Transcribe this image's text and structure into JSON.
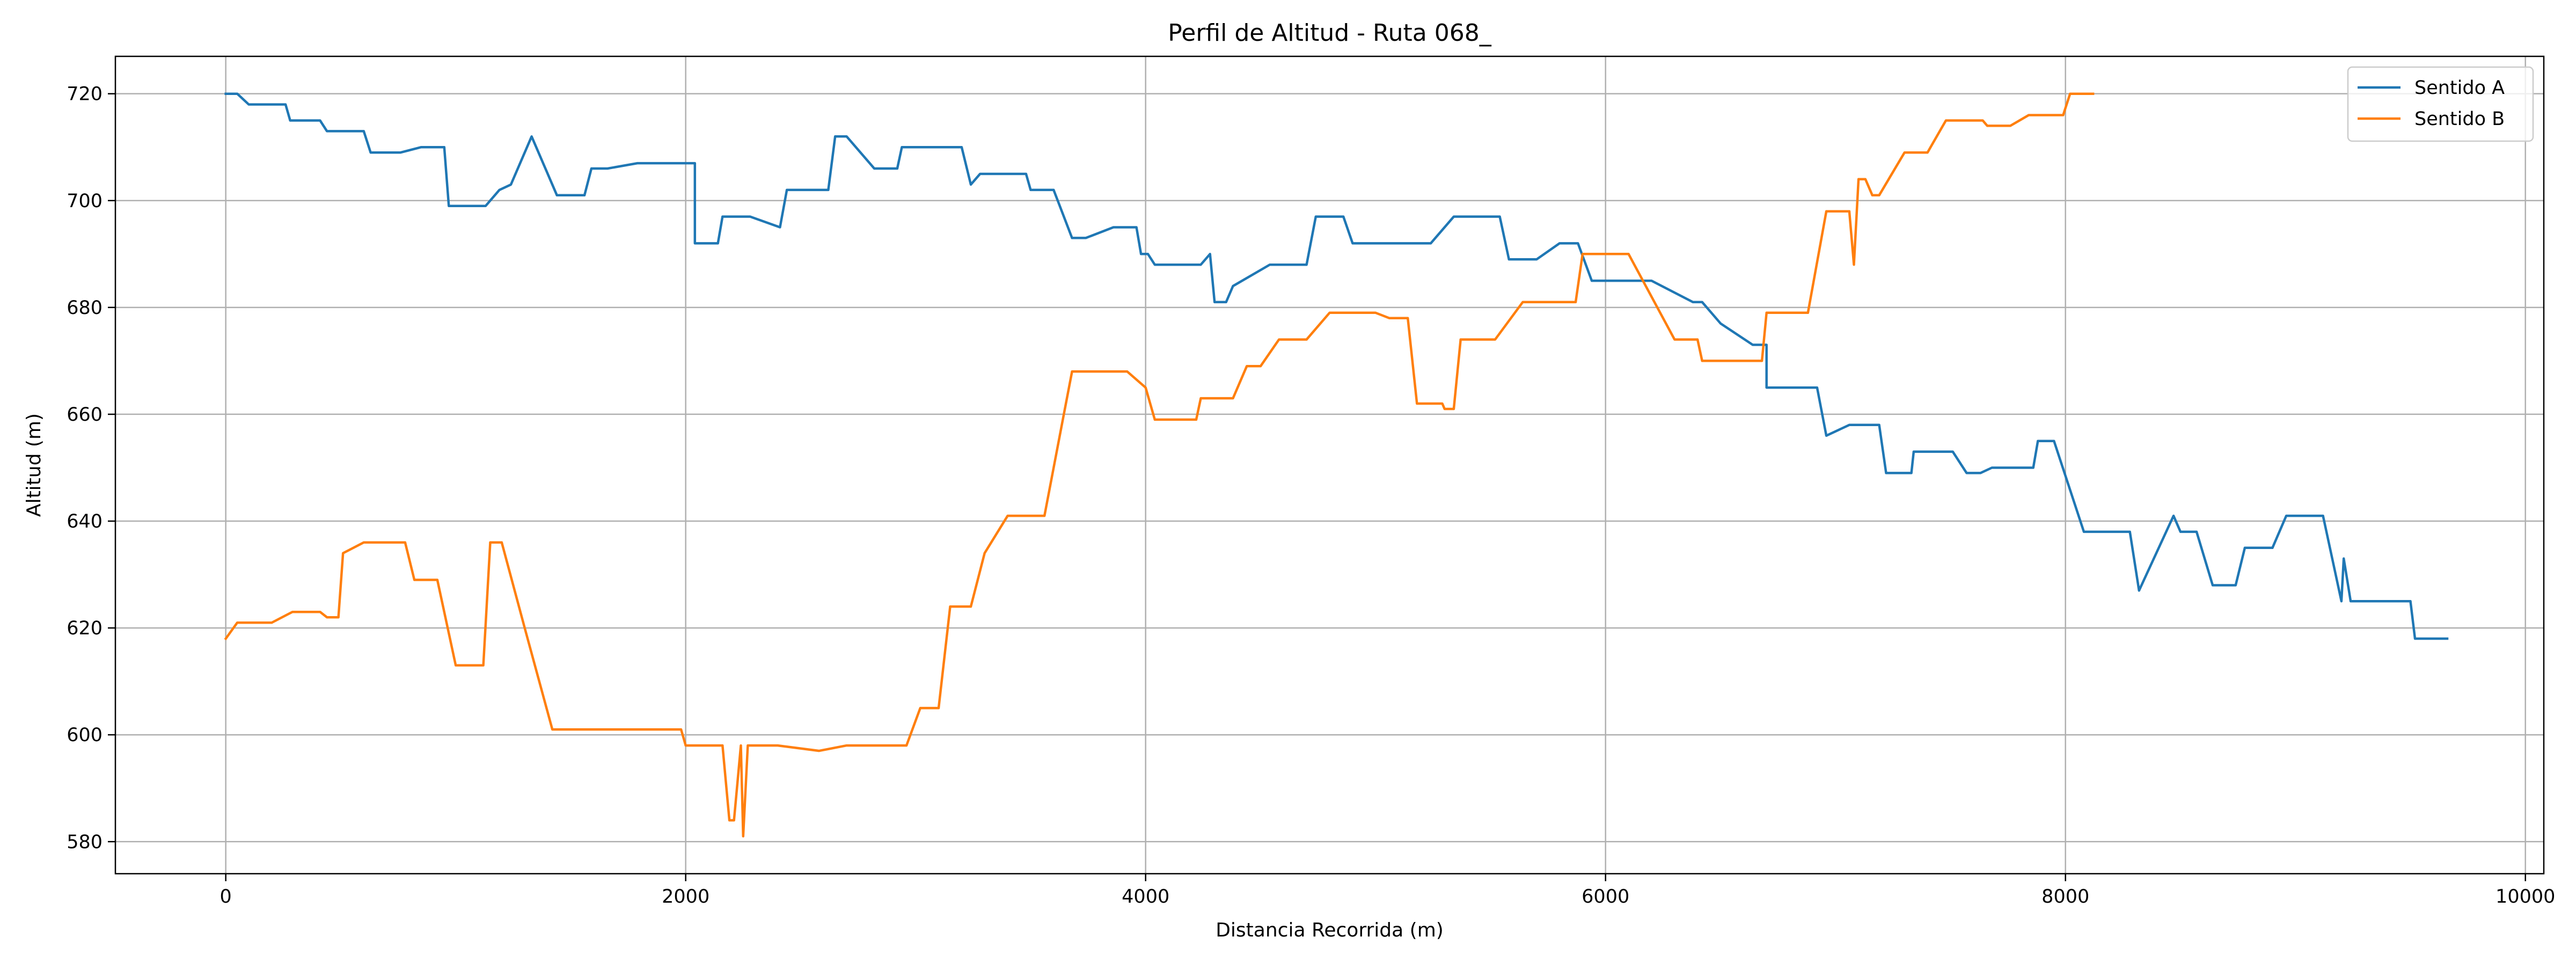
{
  "chart_data": {
    "type": "line",
    "title": "Perfil de Altitud - Ruta 068_",
    "xlabel": "Distancia Recorrida (m)",
    "ylabel": "Altitud (m)",
    "xlim": [
      -480,
      10080
    ],
    "ylim": [
      574,
      727
    ],
    "xticks": [
      0,
      2000,
      4000,
      6000,
      8000,
      10000
    ],
    "yticks": [
      580,
      600,
      620,
      640,
      660,
      680,
      700,
      720
    ],
    "grid": true,
    "legend": "top-right",
    "series": [
      {
        "name": "Sentido A",
        "color": "#1f77b4",
        "points": [
          [
            0,
            720
          ],
          [
            50,
            720
          ],
          [
            100,
            718
          ],
          [
            260,
            718
          ],
          [
            280,
            715
          ],
          [
            410,
            715
          ],
          [
            440,
            713
          ],
          [
            600,
            713
          ],
          [
            630,
            709
          ],
          [
            760,
            709
          ],
          [
            850,
            710
          ],
          [
            950,
            710
          ],
          [
            970,
            699
          ],
          [
            1130,
            699
          ],
          [
            1190,
            702
          ],
          [
            1240,
            703
          ],
          [
            1330,
            712
          ],
          [
            1440,
            701
          ],
          [
            1560,
            701
          ],
          [
            1590,
            706
          ],
          [
            1660,
            706
          ],
          [
            1790,
            707
          ],
          [
            2040,
            707
          ],
          [
            2040,
            692
          ],
          [
            2140,
            692
          ],
          [
            2160,
            697
          ],
          [
            2280,
            697
          ],
          [
            2410,
            695
          ],
          [
            2440,
            702
          ],
          [
            2620,
            702
          ],
          [
            2650,
            712
          ],
          [
            2700,
            712
          ],
          [
            2820,
            706
          ],
          [
            2920,
            706
          ],
          [
            2940,
            710
          ],
          [
            3200,
            710
          ],
          [
            3240,
            703
          ],
          [
            3280,
            705
          ],
          [
            3480,
            705
          ],
          [
            3500,
            702
          ],
          [
            3600,
            702
          ],
          [
            3680,
            693
          ],
          [
            3740,
            693
          ],
          [
            3860,
            695
          ],
          [
            3960,
            695
          ],
          [
            3980,
            690
          ],
          [
            4010,
            690
          ],
          [
            4040,
            688
          ],
          [
            4240,
            688
          ],
          [
            4280,
            690
          ],
          [
            4300,
            681
          ],
          [
            4350,
            681
          ],
          [
            4380,
            684
          ],
          [
            4540,
            688
          ],
          [
            4700,
            688
          ],
          [
            4740,
            697
          ],
          [
            4860,
            697
          ],
          [
            4900,
            692
          ],
          [
            5200,
            692
          ],
          [
            5240,
            692
          ],
          [
            5340,
            697
          ],
          [
            5540,
            697
          ],
          [
            5580,
            689
          ],
          [
            5700,
            689
          ],
          [
            5800,
            692
          ],
          [
            5880,
            692
          ],
          [
            5940,
            685
          ],
          [
            6200,
            685
          ],
          [
            6380,
            681
          ],
          [
            6420,
            681
          ],
          [
            6500,
            677
          ],
          [
            6640,
            673
          ],
          [
            6700,
            673
          ],
          [
            6700,
            665
          ],
          [
            6920,
            665
          ],
          [
            6960,
            656
          ],
          [
            7060,
            658
          ],
          [
            7190,
            658
          ],
          [
            7220,
            649
          ],
          [
            7330,
            649
          ],
          [
            7340,
            653
          ],
          [
            7510,
            653
          ],
          [
            7570,
            649
          ],
          [
            7630,
            649
          ],
          [
            7680,
            650
          ],
          [
            7860,
            650
          ],
          [
            7880,
            655
          ],
          [
            7950,
            655
          ],
          [
            8080,
            638
          ],
          [
            8280,
            638
          ],
          [
            8320,
            627
          ],
          [
            8470,
            641
          ],
          [
            8500,
            638
          ],
          [
            8570,
            638
          ],
          [
            8640,
            628
          ],
          [
            8740,
            628
          ],
          [
            8780,
            635
          ],
          [
            8900,
            635
          ],
          [
            8960,
            641
          ],
          [
            9120,
            641
          ],
          [
            9200,
            625
          ],
          [
            9210,
            633
          ],
          [
            9240,
            625
          ],
          [
            9500,
            625
          ],
          [
            9520,
            618
          ],
          [
            9660,
            618
          ]
        ]
      },
      {
        "name": "Sentido B",
        "color": "#ff7f0e",
        "points": [
          [
            0,
            618
          ],
          [
            50,
            621
          ],
          [
            200,
            621
          ],
          [
            290,
            623
          ],
          [
            410,
            623
          ],
          [
            440,
            622
          ],
          [
            490,
            622
          ],
          [
            510,
            634
          ],
          [
            600,
            636
          ],
          [
            780,
            636
          ],
          [
            820,
            629
          ],
          [
            920,
            629
          ],
          [
            1000,
            613
          ],
          [
            1120,
            613
          ],
          [
            1150,
            636
          ],
          [
            1200,
            636
          ],
          [
            1300,
            620
          ],
          [
            1420,
            601
          ],
          [
            1980,
            601
          ],
          [
            2000,
            598
          ],
          [
            2160,
            598
          ],
          [
            2190,
            584
          ],
          [
            2210,
            584
          ],
          [
            2240,
            598
          ],
          [
            2250,
            581
          ],
          [
            2270,
            598
          ],
          [
            2400,
            598
          ],
          [
            2580,
            597
          ],
          [
            2700,
            598
          ],
          [
            2960,
            598
          ],
          [
            3020,
            605
          ],
          [
            3100,
            605
          ],
          [
            3150,
            624
          ],
          [
            3240,
            624
          ],
          [
            3300,
            634
          ],
          [
            3400,
            641
          ],
          [
            3560,
            641
          ],
          [
            3640,
            659
          ],
          [
            3680,
            668
          ],
          [
            3920,
            668
          ],
          [
            4000,
            665
          ],
          [
            4040,
            659
          ],
          [
            4220,
            659
          ],
          [
            4240,
            663
          ],
          [
            4380,
            663
          ],
          [
            4440,
            669
          ],
          [
            4500,
            669
          ],
          [
            4580,
            674
          ],
          [
            4700,
            674
          ],
          [
            4800,
            679
          ],
          [
            5000,
            679
          ],
          [
            5060,
            678
          ],
          [
            5140,
            678
          ],
          [
            5180,
            662
          ],
          [
            5290,
            662
          ],
          [
            5300,
            661
          ],
          [
            5340,
            661
          ],
          [
            5370,
            674
          ],
          [
            5520,
            674
          ],
          [
            5640,
            681
          ],
          [
            5870,
            681
          ],
          [
            5900,
            690
          ],
          [
            6100,
            690
          ],
          [
            6300,
            674
          ],
          [
            6400,
            674
          ],
          [
            6420,
            670
          ],
          [
            6680,
            670
          ],
          [
            6700,
            679
          ],
          [
            6880,
            679
          ],
          [
            6960,
            698
          ],
          [
            7060,
            698
          ],
          [
            7080,
            688
          ],
          [
            7100,
            704
          ],
          [
            7130,
            704
          ],
          [
            7160,
            701
          ],
          [
            7190,
            701
          ],
          [
            7300,
            709
          ],
          [
            7400,
            709
          ],
          [
            7480,
            715
          ],
          [
            7640,
            715
          ],
          [
            7660,
            714
          ],
          [
            7760,
            714
          ],
          [
            7840,
            716
          ],
          [
            7990,
            716
          ],
          [
            8020,
            720
          ],
          [
            8120,
            720
          ]
        ]
      }
    ]
  }
}
